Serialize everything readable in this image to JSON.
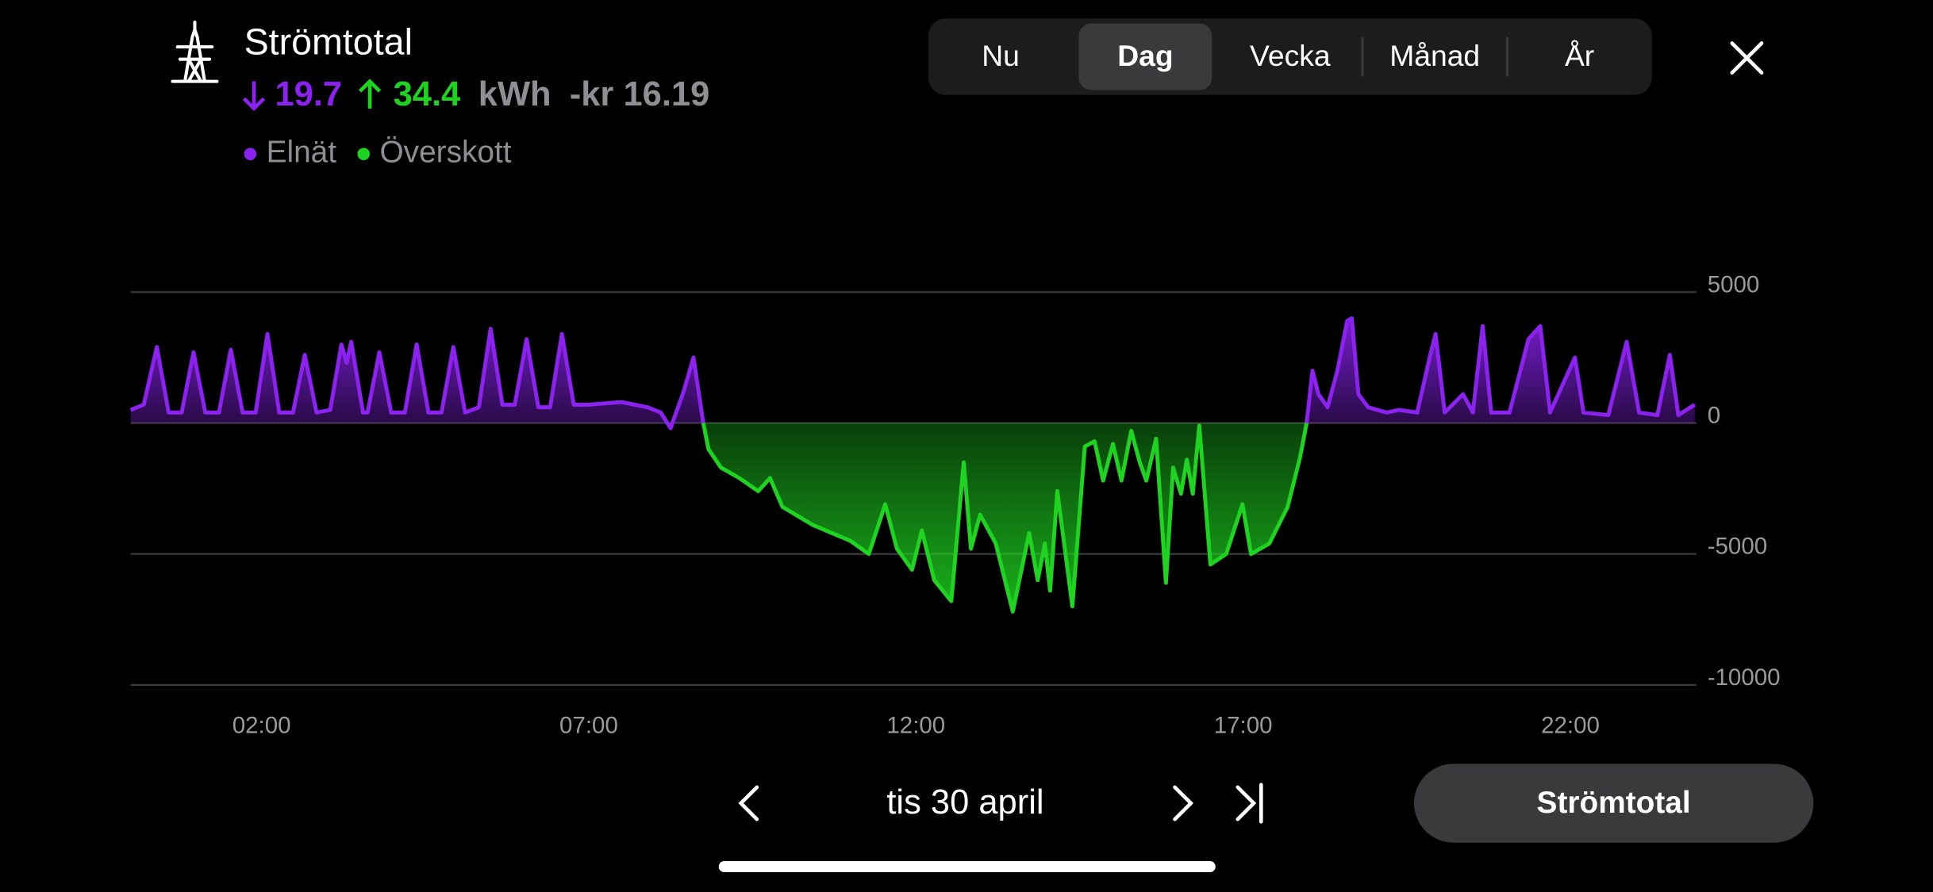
{
  "header": {
    "title": "Strömtotal",
    "import_value": 19.7,
    "export_value": 34.4,
    "unit": "kWh",
    "cost": "-kr 16.19"
  },
  "tabs": {
    "items": [
      "Nu",
      "Dag",
      "Vecka",
      "Månad",
      "År"
    ],
    "selected": 1
  },
  "chart_data": {
    "type": "area",
    "x": [
      0,
      0.2,
      0.4,
      0.58,
      0.78,
      0.96,
      1.14,
      1.35,
      1.53,
      1.71,
      1.91,
      2.09,
      2.27,
      2.48,
      2.66,
      2.84,
      3.05,
      3.22,
      3.3,
      3.37,
      3.55,
      3.62,
      3.8,
      3.98,
      4.19,
      4.37,
      4.55,
      4.75,
      4.93,
      5.11,
      5.32,
      5.5,
      5.68,
      5.87,
      6.05,
      6.23,
      6.41,
      6.59,
      6.77,
      7,
      7.5,
      7.9,
      8.1,
      8.25,
      8.45,
      8.6,
      8.75,
      8.83,
      9.02,
      9.3,
      9.59,
      9.77,
      9.96,
      10.43,
      11,
      11.28,
      11.53,
      11.71,
      11.94,
      12.09,
      12.28,
      12.54,
      12.73,
      12.84,
      12.98,
      13.22,
      13.48,
      13.73,
      13.86,
      13.97,
      14.05,
      14.16,
      14.39,
      14.58,
      14.73,
      14.86,
      15.01,
      15.14,
      15.29,
      15.42,
      15.52,
      15.67,
      15.82,
      15.93,
      16.05,
      16.14,
      16.23,
      16.33,
      16.5,
      16.74,
      16.99,
      17.12,
      17.4,
      17.68,
      17.87,
      17.97,
      18.06,
      18.15,
      18.29,
      18.44,
      18.59,
      18.66,
      18.76,
      18.91,
      19.19,
      19.38,
      19.66,
      19.85,
      19.94,
      20.08,
      20.36,
      20.51,
      20.66,
      20.79,
      21.07,
      21.36,
      21.54,
      21.69,
      22.07,
      22.2,
      22.58,
      22.86,
      23.05,
      23.33,
      23.52,
      23.65,
      23.9
    ],
    "series": [
      {
        "name": "Elnät",
        "color": "#8b22f0",
        "values": [
          500,
          700,
          2900,
          400,
          400,
          2700,
          400,
          400,
          2800,
          400,
          400,
          3400,
          400,
          400,
          2600,
          400,
          500,
          3000,
          2300,
          3100,
          400,
          400,
          2700,
          400,
          400,
          3000,
          400,
          400,
          2900,
          400,
          600,
          3600,
          700,
          700,
          3200,
          600,
          600,
          3400,
          700,
          700,
          800,
          600,
          400,
          -200,
          1200,
          2500,
          0,
          null,
          null,
          null,
          null,
          null,
          null,
          null,
          null,
          null,
          null,
          null,
          null,
          null,
          null,
          null,
          null,
          null,
          null,
          null,
          null,
          null,
          null,
          null,
          null,
          null,
          null,
          null,
          null,
          null,
          null,
          null,
          null,
          null,
          null,
          null,
          null,
          null,
          null,
          null,
          null,
          null,
          null,
          null,
          null,
          null,
          null,
          null,
          null,
          0,
          2000,
          1100,
          600,
          2000,
          3900,
          4000,
          1100,
          600,
          400,
          500,
          400,
          2500,
          3400,
          400,
          1100,
          400,
          3700,
          400,
          400,
          3200,
          3700,
          400,
          2500,
          400,
          300,
          3100,
          400,
          300,
          2600,
          300,
          700
        ]
      },
      {
        "name": "Överskott",
        "color": "#1fd321",
        "values": [
          null,
          null,
          null,
          null,
          null,
          null,
          null,
          null,
          null,
          null,
          null,
          null,
          null,
          null,
          null,
          null,
          null,
          null,
          null,
          null,
          null,
          null,
          null,
          null,
          null,
          null,
          null,
          null,
          null,
          null,
          null,
          null,
          null,
          null,
          null,
          null,
          null,
          null,
          null,
          null,
          null,
          null,
          null,
          null,
          null,
          null,
          0,
          -1000,
          -1700,
          -2100,
          -2600,
          -2100,
          -3200,
          -3900,
          -4500,
          -5000,
          -3100,
          -4800,
          -5600,
          -4100,
          -6000,
          -6800,
          -1500,
          -4800,
          -3500,
          -4600,
          -7200,
          -4200,
          -6000,
          -4600,
          -6400,
          -2600,
          -7000,
          -900,
          -700,
          -2200,
          -800,
          -2200,
          -300,
          -1500,
          -2200,
          -600,
          -6100,
          -1700,
          -2700,
          -1400,
          -2700,
          -100,
          -5400,
          -5000,
          -3100,
          -5000,
          -4600,
          -3200,
          -1300,
          0,
          null,
          null,
          null,
          null,
          null,
          null,
          null,
          null,
          null,
          null,
          null,
          null,
          null,
          null,
          null,
          null,
          null,
          null,
          null,
          null,
          null,
          null,
          null,
          null,
          null,
          null,
          null,
          null,
          null,
          null,
          null
        ]
      }
    ],
    "xlim": [
      0,
      24
    ],
    "xticks": [
      {
        "value": 2,
        "label": "02:00"
      },
      {
        "value": 7,
        "label": "07:00"
      },
      {
        "value": 12,
        "label": "12:00"
      },
      {
        "value": 17,
        "label": "17:00"
      },
      {
        "value": 22,
        "label": "22:00"
      }
    ],
    "ylim": [
      -10000,
      5000
    ],
    "yticks": [
      5000,
      0,
      -5000,
      -10000
    ],
    "grid": true
  },
  "footer": {
    "date": "tis 30 april",
    "button": "Strömtotal"
  }
}
